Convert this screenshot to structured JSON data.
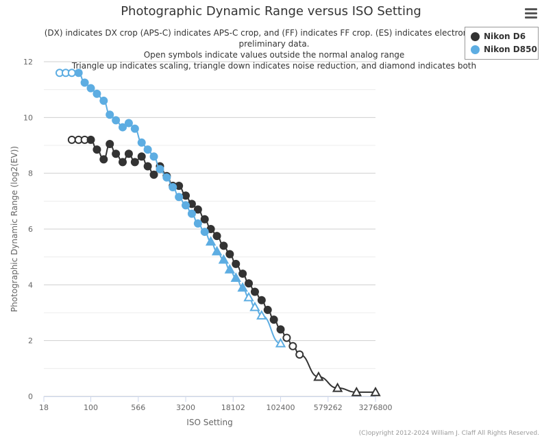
{
  "chart_data": {
    "type": "line",
    "title": "Photographic Dynamic Range versus ISO Setting",
    "subtitle": "(DX) indicates DX crop (APS-C) indicates APS-C crop, and (FF) indicates FF crop. (ES) indicates electronic shutte\npreliminary data.\nOpen symbols indicate values outside the normal analog range\nTriangle up indicates scaling, triangle down indicates noise reduction, and diamond indicates both",
    "xlabel": "ISO Setting",
    "ylabel": "Photographic Dynamic Range (log2(EV))",
    "x_scale": "log2",
    "xlim": [
      18,
      3276800
    ],
    "ylim": [
      0,
      12
    ],
    "x_ticks": [
      "18",
      "100",
      "566",
      "3200",
      "18102",
      "102400",
      "579262",
      "3276800"
    ],
    "y_ticks": [
      "0",
      "2",
      "4",
      "6",
      "8",
      "10",
      "12"
    ],
    "grid": "horizontal",
    "legend_position": "top-right",
    "series": [
      {
        "name": "Nikon D6",
        "color": "#333333",
        "points": [
          {
            "x": 50,
            "y": 9.2,
            "marker": "circle-open"
          },
          {
            "x": 64,
            "y": 9.2,
            "marker": "circle-open"
          },
          {
            "x": 80,
            "y": 9.2,
            "marker": "circle-open"
          },
          {
            "x": 100,
            "y": 9.2,
            "marker": "circle"
          },
          {
            "x": 125,
            "y": 8.85,
            "marker": "circle"
          },
          {
            "x": 160,
            "y": 8.5,
            "marker": "circle"
          },
          {
            "x": 200,
            "y": 9.05,
            "marker": "circle"
          },
          {
            "x": 250,
            "y": 8.7,
            "marker": "circle"
          },
          {
            "x": 320,
            "y": 8.4,
            "marker": "circle"
          },
          {
            "x": 400,
            "y": 8.7,
            "marker": "circle"
          },
          {
            "x": 500,
            "y": 8.4,
            "marker": "circle"
          },
          {
            "x": 640,
            "y": 8.6,
            "marker": "circle"
          },
          {
            "x": 800,
            "y": 8.25,
            "marker": "circle"
          },
          {
            "x": 1000,
            "y": 7.95,
            "marker": "circle"
          },
          {
            "x": 1250,
            "y": 8.25,
            "marker": "circle"
          },
          {
            "x": 1600,
            "y": 7.9,
            "marker": "circle"
          },
          {
            "x": 2000,
            "y": 7.55,
            "marker": "circle"
          },
          {
            "x": 2500,
            "y": 7.55,
            "marker": "circle"
          },
          {
            "x": 3200,
            "y": 7.2,
            "marker": "circle"
          },
          {
            "x": 4000,
            "y": 6.9,
            "marker": "circle"
          },
          {
            "x": 5000,
            "y": 6.7,
            "marker": "circle"
          },
          {
            "x": 6400,
            "y": 6.35,
            "marker": "circle"
          },
          {
            "x": 8000,
            "y": 6.0,
            "marker": "circle"
          },
          {
            "x": 10000,
            "y": 5.75,
            "marker": "circle"
          },
          {
            "x": 12800,
            "y": 5.4,
            "marker": "circle"
          },
          {
            "x": 16000,
            "y": 5.1,
            "marker": "circle"
          },
          {
            "x": 20000,
            "y": 4.75,
            "marker": "circle"
          },
          {
            "x": 25600,
            "y": 4.4,
            "marker": "circle"
          },
          {
            "x": 32000,
            "y": 4.05,
            "marker": "circle"
          },
          {
            "x": 40000,
            "y": 3.75,
            "marker": "circle"
          },
          {
            "x": 51200,
            "y": 3.45,
            "marker": "circle"
          },
          {
            "x": 64000,
            "y": 3.1,
            "marker": "circle"
          },
          {
            "x": 80000,
            "y": 2.75,
            "marker": "circle"
          },
          {
            "x": 102400,
            "y": 2.4,
            "marker": "circle"
          },
          {
            "x": 128000,
            "y": 2.1,
            "marker": "circle-open"
          },
          {
            "x": 160000,
            "y": 1.8,
            "marker": "circle-open"
          },
          {
            "x": 204800,
            "y": 1.5,
            "marker": "circle-open"
          },
          {
            "x": 409600,
            "y": 0.7,
            "marker": "triangle-up-open"
          },
          {
            "x": 819200,
            "y": 0.3,
            "marker": "triangle-up-open"
          },
          {
            "x": 1638400,
            "y": 0.15,
            "marker": "triangle-up-open"
          },
          {
            "x": 3276800,
            "y": 0.15,
            "marker": "triangle-up-open"
          }
        ]
      },
      {
        "name": "Nikon D850",
        "color": "#5dade2",
        "points": [
          {
            "x": 32,
            "y": 11.6,
            "marker": "circle-open"
          },
          {
            "x": 40,
            "y": 11.6,
            "marker": "circle-open"
          },
          {
            "x": 50,
            "y": 11.6,
            "marker": "circle-open"
          },
          {
            "x": 64,
            "y": 11.6,
            "marker": "circle"
          },
          {
            "x": 80,
            "y": 11.25,
            "marker": "circle"
          },
          {
            "x": 100,
            "y": 11.05,
            "marker": "circle"
          },
          {
            "x": 125,
            "y": 10.85,
            "marker": "circle"
          },
          {
            "x": 160,
            "y": 10.6,
            "marker": "circle"
          },
          {
            "x": 200,
            "y": 10.1,
            "marker": "circle"
          },
          {
            "x": 250,
            "y": 9.9,
            "marker": "circle"
          },
          {
            "x": 320,
            "y": 9.65,
            "marker": "circle"
          },
          {
            "x": 400,
            "y": 9.8,
            "marker": "circle"
          },
          {
            "x": 500,
            "y": 9.6,
            "marker": "circle"
          },
          {
            "x": 640,
            "y": 9.1,
            "marker": "circle"
          },
          {
            "x": 800,
            "y": 8.85,
            "marker": "circle"
          },
          {
            "x": 1000,
            "y": 8.6,
            "marker": "circle"
          },
          {
            "x": 1250,
            "y": 8.15,
            "marker": "circle"
          },
          {
            "x": 1600,
            "y": 7.85,
            "marker": "circle"
          },
          {
            "x": 2000,
            "y": 7.5,
            "marker": "circle"
          },
          {
            "x": 2500,
            "y": 7.15,
            "marker": "circle"
          },
          {
            "x": 3200,
            "y": 6.85,
            "marker": "circle"
          },
          {
            "x": 4000,
            "y": 6.55,
            "marker": "circle"
          },
          {
            "x": 5000,
            "y": 6.2,
            "marker": "circle"
          },
          {
            "x": 6400,
            "y": 5.9,
            "marker": "circle"
          },
          {
            "x": 8000,
            "y": 5.55,
            "marker": "triangle-up"
          },
          {
            "x": 10000,
            "y": 5.2,
            "marker": "triangle-up"
          },
          {
            "x": 12800,
            "y": 4.9,
            "marker": "triangle-up"
          },
          {
            "x": 16000,
            "y": 4.55,
            "marker": "triangle-up"
          },
          {
            "x": 20000,
            "y": 4.25,
            "marker": "triangle-up"
          },
          {
            "x": 25600,
            "y": 3.9,
            "marker": "triangle-up"
          },
          {
            "x": 32000,
            "y": 3.55,
            "marker": "triangle-up-open"
          },
          {
            "x": 40000,
            "y": 3.2,
            "marker": "triangle-up-open"
          },
          {
            "x": 51200,
            "y": 2.9,
            "marker": "triangle-up-open"
          },
          {
            "x": 102400,
            "y": 1.9,
            "marker": "triangle-up-open"
          }
        ]
      }
    ],
    "credits": "(C)opyright 2012-2024 William J. Claff All Rights Reserved."
  }
}
